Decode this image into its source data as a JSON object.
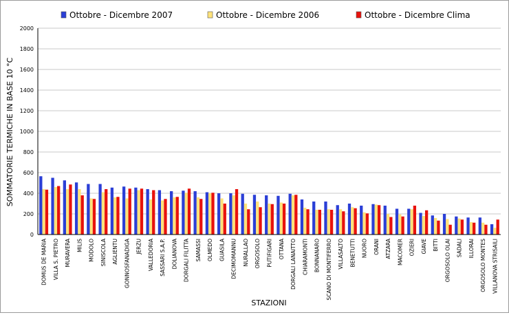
{
  "chart_data": {
    "type": "bar",
    "xlabel": "STAZIONI",
    "ylabel": "SOMMATORIE TERMICHE IN BASE 10 °C",
    "ylim": [
      0,
      2000
    ],
    "yticks": [
      0,
      200,
      400,
      600,
      800,
      1000,
      1200,
      1400,
      1600,
      1800,
      2000
    ],
    "grid": true,
    "legend_position": "top",
    "categories": [
      "DOMUS DE MARIA",
      "VILLA S. PIETRO",
      "MURAVERA",
      "MILIS",
      "MODOLO",
      "SINISCOLA",
      "AGLIENTU",
      "GONNOSFANADIGA",
      "JERZU",
      "VALLEDORIA",
      "SASSARI S.A.P.",
      "DOLIANOVA",
      "DORGALI FILITTA",
      "SAMASSI",
      "OLMEDO",
      "GUASILA",
      "DECIMOMANNU",
      "NURALLAO",
      "ORGOSOLO",
      "PUTIFIGARI",
      "OTTANA",
      "DORGALI LANAITTO",
      "CHIARAMONTI",
      "BONNANARO",
      "SCANO DI MONTIFERRO",
      "VILLASALTO",
      "BENETUTTI",
      "NUORO",
      "ORANI",
      "ATZARA",
      "MACOMER",
      "OZIERI",
      "GIAVE",
      "BITTI",
      "ORGOSOLO OLAI",
      "SADALI",
      "ILLORAI",
      "ORGOSOLO MONTES",
      "VILLANOVA STRISAILI"
    ],
    "series": [
      {
        "name": "Ottobre - Dicembre 2007",
        "color": "#2b3fd6",
        "values": [
          565,
          550,
          525,
          505,
          490,
          490,
          455,
          465,
          455,
          440,
          430,
          420,
          425,
          420,
          410,
          400,
          400,
          395,
          385,
          380,
          375,
          395,
          340,
          320,
          320,
          285,
          300,
          280,
          295,
          280,
          250,
          250,
          210,
          185,
          200,
          175,
          165,
          165,
          100
        ]
      },
      {
        "name": "Ottobre - Dicembre 2006",
        "color": "#ffe27a",
        "values": [
          440,
          460,
          440,
          440,
          350,
          410,
          360,
          350,
          430,
          340,
          330,
          360,
          405,
          360,
          400,
          350,
          380,
          300,
          320,
          300,
          310,
          380,
          260,
          240,
          245,
          245,
          265,
          215,
          290,
          200,
          195,
          245,
          180,
          160,
          150,
          155,
          120,
          115,
          65
        ]
      },
      {
        "name": "Ottobre - Dicembre Clima",
        "color": "#e8120c",
        "values": [
          435,
          470,
          485,
          380,
          345,
          440,
          365,
          445,
          445,
          430,
          345,
          365,
          445,
          345,
          405,
          300,
          440,
          245,
          265,
          295,
          300,
          385,
          245,
          240,
          240,
          225,
          255,
          205,
          285,
          170,
          175,
          280,
          235,
          135,
          95,
          145,
          115,
          95,
          145
        ]
      }
    ]
  }
}
